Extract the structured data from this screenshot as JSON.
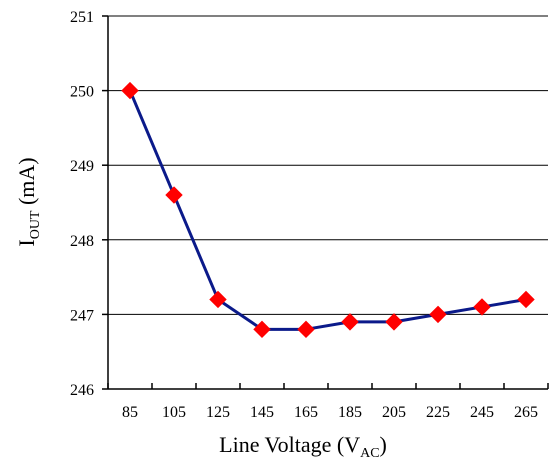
{
  "chart_data": {
    "type": "line",
    "x": [
      85,
      105,
      125,
      145,
      165,
      185,
      205,
      225,
      245,
      265
    ],
    "series": [
      {
        "values": [
          250.0,
          248.6,
          247.2,
          246.8,
          246.8,
          246.9,
          246.9,
          247.0,
          247.1,
          247.2
        ],
        "line_color": "#0b1a8a",
        "marker": "diamond",
        "marker_color": "#ff0000"
      }
    ],
    "xlabel": {
      "main": "Line Voltage (V",
      "sub": "AC",
      "tail": ")"
    },
    "ylabel": {
      "main": "I",
      "sub": "OUT",
      "tail": " (mA)"
    },
    "xticks": [
      "85",
      "105",
      "125",
      "145",
      "165",
      "185",
      "205",
      "225",
      "245",
      "265"
    ],
    "yticks": [
      "246",
      "247",
      "248",
      "249",
      "250",
      "251"
    ],
    "ylim": [
      246,
      251
    ],
    "grid": "horizontal"
  }
}
